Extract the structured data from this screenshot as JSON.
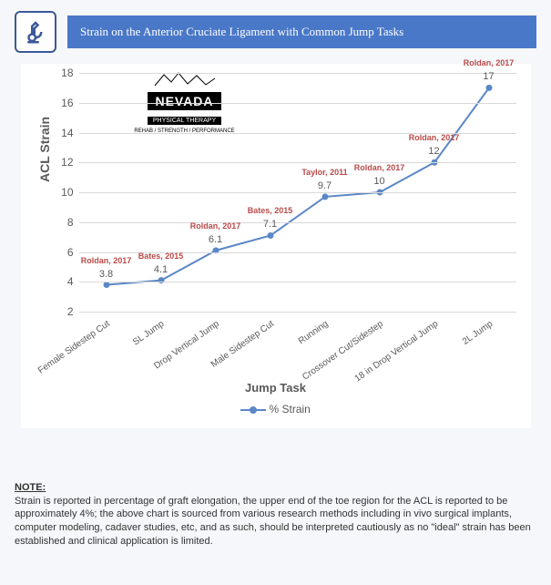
{
  "header": {
    "title": "Strain on the Anterior Cruciate Ligament with Common Jump Tasks",
    "title_bg": "#4a78c8",
    "title_color": "#ffffff",
    "icon_border": "#3b5998"
  },
  "logo": {
    "name": "NEVADA",
    "sub": "PHYSICAL THERAPY",
    "tag": "REHAB / STRENGTH / PERFORMANCE"
  },
  "chart": {
    "type": "line",
    "ylabel": "ACL Strain",
    "xlabel": "Jump Task",
    "legend_label": "% Strain",
    "yticks": [
      2,
      4,
      6,
      8,
      10,
      12,
      14,
      16,
      18
    ],
    "ylim": [
      2,
      18
    ],
    "tick_color": "#595959",
    "grid_color": "#d9d9d9",
    "line_color": "#5b87c7",
    "marker_color": "#5b87c7",
    "marker_size": 7,
    "line_width": 2,
    "citation_color": "#b94a48",
    "label_color": "#595959",
    "tick_fontsize": 12,
    "label_fontsize": 14,
    "background": "#ffffff",
    "categories": [
      "Female Sidestep Cut",
      "SL Jump",
      "Drop Vertical Jump",
      "Male Sidestep Cut",
      "Running",
      "Crossover Cut/Sidestep",
      "18 in Drop Vertical Jump",
      "2L Jump"
    ],
    "values": [
      3.8,
      4.1,
      6.1,
      7.1,
      9.7,
      10,
      12,
      17
    ],
    "citations": [
      "Roldan, 2017",
      "Bates, 2015",
      "Roldan, 2017",
      "Bates, 2015",
      "Taylor, 2011",
      "Roldan, 2017",
      "Roldan, 2017",
      "Roldan, 2017"
    ]
  },
  "note": {
    "title": "NOTE:",
    "body": "Strain is reported in percentage of graft elongation, the upper end of the toe region for the ACL is reported to be approximately 4%; the above chart is sourced from various research methods including in vivo surgical implants, computer modeling, cadaver studies, etc, and as such, should be interpreted cautiously as no \"ideal\" strain has been established and clinical application is limited."
  }
}
